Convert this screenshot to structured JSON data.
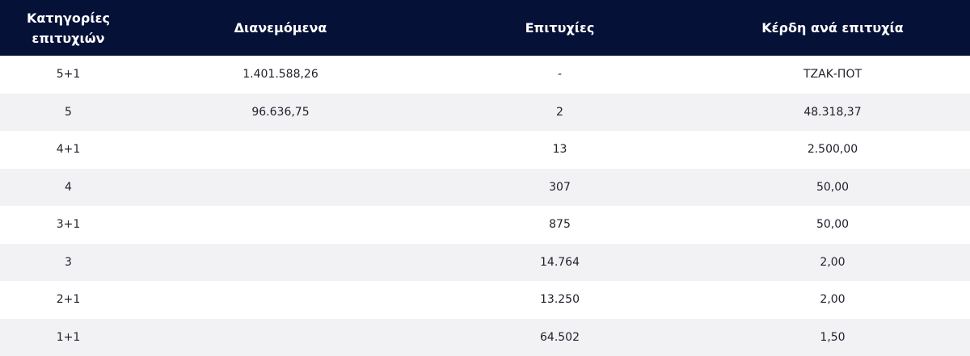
{
  "table": {
    "headers": [
      "Κατηγορίες επιτυχιών",
      "Διανεμόμενα",
      "Επιτυχίες",
      "Κέρδη ανά επιτυχία"
    ],
    "rows": [
      {
        "category": "5+1",
        "distributed": "1.401.588,26",
        "winners": "-",
        "prize": "ΤΖΑΚ-ΠΟΤ"
      },
      {
        "category": "5",
        "distributed": "96.636,75",
        "winners": "2",
        "prize": "48.318,37"
      },
      {
        "category": "4+1",
        "distributed": "",
        "winners": "13",
        "prize": "2.500,00"
      },
      {
        "category": "4",
        "distributed": "",
        "winners": "307",
        "prize": "50,00"
      },
      {
        "category": "3+1",
        "distributed": "",
        "winners": "875",
        "prize": "50,00"
      },
      {
        "category": "3",
        "distributed": "",
        "winners": "14.764",
        "prize": "2,00"
      },
      {
        "category": "2+1",
        "distributed": "",
        "winners": "13.250",
        "prize": "2,00"
      },
      {
        "category": "1+1",
        "distributed": "",
        "winners": "64.502",
        "prize": "1,50"
      }
    ]
  },
  "colors": {
    "header_background": "#061138",
    "header_text": "#ffffff",
    "row_alt_background": "#f2f2f5"
  }
}
